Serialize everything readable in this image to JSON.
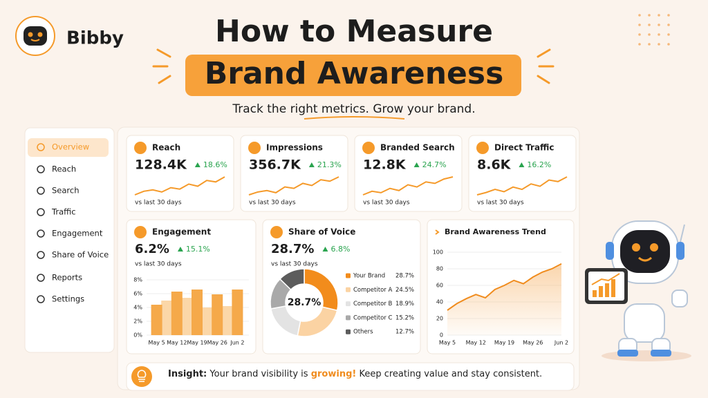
{
  "brand": "Bibby",
  "title": [
    "How to Measure",
    "Brand Awareness"
  ],
  "subtitle": "Track the right metrics. Grow your brand.",
  "sidebar": [
    "Overview",
    "Reach",
    "Search",
    "Traffic",
    "Engagement",
    "Share of Voice",
    "Reports",
    "Settings"
  ],
  "kpis": [
    {
      "label": "Reach",
      "value": "128.4K",
      "change": "18.6%",
      "note": "vs last 30 days",
      "trend": [
        2,
        3,
        3.4,
        2.8,
        4,
        3.6,
        5,
        4.4,
        6,
        5.6,
        7
      ]
    },
    {
      "label": "Impressions",
      "value": "356.7K",
      "change": "21.3%",
      "note": "vs last 30 days",
      "trend": [
        2,
        2.8,
        3.2,
        2.6,
        4.2,
        3.8,
        5.2,
        4.6,
        6.2,
        5.8,
        7
      ]
    },
    {
      "label": "Branded Search",
      "value": "12.8K",
      "change": "24.7%",
      "note": "vs last 30 days",
      "trend": [
        2,
        3,
        2.6,
        3.8,
        3.2,
        4.8,
        4.2,
        5.6,
        5.2,
        6.4,
        7
      ]
    },
    {
      "label": "Direct Traffic",
      "value": "8.6K",
      "change": "16.2%",
      "note": "vs last 30 days",
      "trend": [
        2,
        2.6,
        3.4,
        2.8,
        4,
        3.4,
        4.8,
        4.2,
        5.8,
        5.4,
        6.6
      ]
    }
  ],
  "engagement": {
    "label": "Engagement",
    "value": "6.2%",
    "change": "15.1%",
    "note": "vs last 30 days",
    "chart": {
      "type": "bar",
      "categories": [
        "May 5",
        "May 12",
        "May 19",
        "May 26",
        "Jun 2"
      ],
      "series": [
        {
          "color": "#f5a94a",
          "values": [
            4.4,
            6.3,
            6.6,
            5.9,
            6.6
          ]
        },
        {
          "color": "#fbd7a8",
          "values": [
            5.0,
            5.4,
            4.0,
            4.2,
            null
          ]
        }
      ],
      "ylim": [
        0,
        8
      ],
      "yticks": [
        {
          "value": 0,
          "label": "0%"
        },
        {
          "value": 2,
          "label": "2%"
        },
        {
          "value": 4,
          "label": "4%"
        },
        {
          "value": 6,
          "label": "6%"
        },
        {
          "value": 8,
          "label": "8%"
        }
      ]
    }
  },
  "share_of_voice": {
    "label": "Share of Voice",
    "value": "28.7%",
    "change": "6.8%",
    "note": "vs last 30 days",
    "center": "28.7%",
    "chart": {
      "type": "pie",
      "categories": [
        "Your Brand",
        "Competitor A",
        "Competitor B",
        "Competitor C",
        "Others"
      ],
      "values": [
        28.7,
        24.5,
        18.9,
        15.2,
        12.7
      ],
      "value_labels": [
        "28.7%",
        "24.5%",
        "18.9%",
        "15.2%",
        "12.7%"
      ],
      "colors": [
        "#f28c1c",
        "#fbd3a3",
        "#e3e3e3",
        "#a9a9a9",
        "#5c5c5c"
      ]
    }
  },
  "trend": {
    "label": "Brand Awareness Trend",
    "chart": {
      "type": "line",
      "categories": [
        "May 5",
        null,
        null,
        "May 12",
        null,
        null,
        "May 19",
        null,
        null,
        "May 26",
        null,
        null,
        "Jun 2"
      ],
      "values": [
        30,
        38,
        44,
        49,
        45,
        55,
        60,
        66,
        62,
        70,
        76,
        80,
        86
      ],
      "color": "#f08c1e",
      "ylim": [
        0,
        100
      ],
      "yticks": [
        0,
        20,
        40,
        60,
        80,
        100
      ]
    }
  },
  "insight": {
    "label": "Insight:",
    "text": [
      "Your brand visibility is ",
      "growing!",
      " Keep creating value and stay consistent."
    ]
  }
}
